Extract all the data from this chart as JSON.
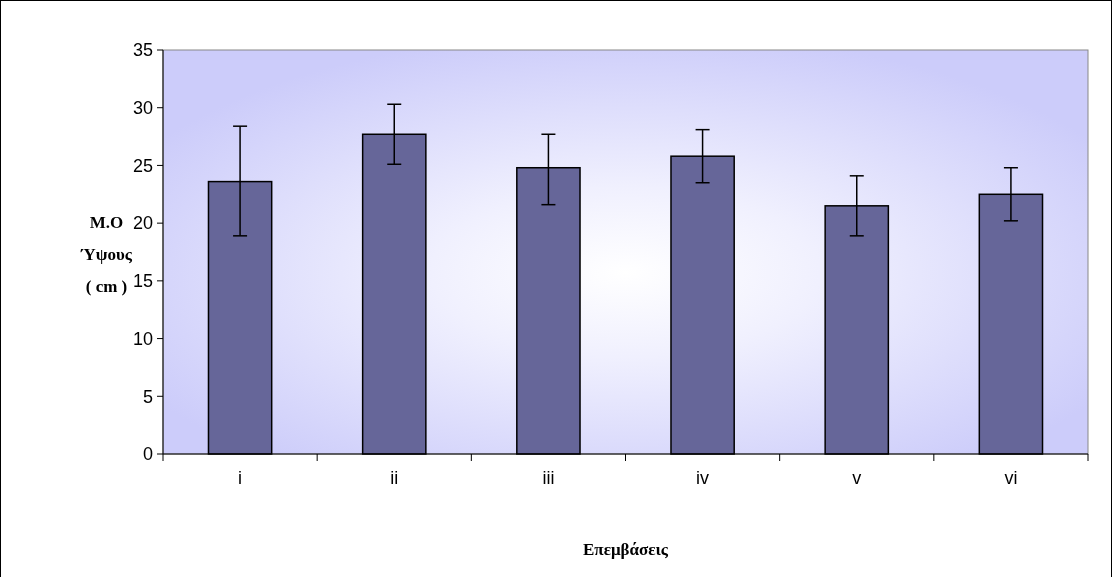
{
  "chart_data": {
    "type": "bar",
    "xlabel": "Επεμβάσεις",
    "ylabel": "M.O\nΎψους\n( cm )",
    "categories": [
      "i",
      "ii",
      "iii",
      "iv",
      "v",
      "vi"
    ],
    "values": [
      23.6,
      27.7,
      24.8,
      25.8,
      21.5,
      22.5
    ],
    "errors": [
      [
        18.9,
        28.4
      ],
      [
        25.1,
        30.3
      ],
      [
        21.6,
        27.7
      ],
      [
        23.5,
        28.1
      ],
      [
        18.9,
        24.1
      ],
      [
        20.2,
        24.8
      ]
    ],
    "color": "#666699",
    "ylim": [
      0,
      35
    ],
    "yticks": [
      0,
      5,
      10,
      15,
      20,
      25,
      30,
      35
    ],
    "grid": false
  }
}
